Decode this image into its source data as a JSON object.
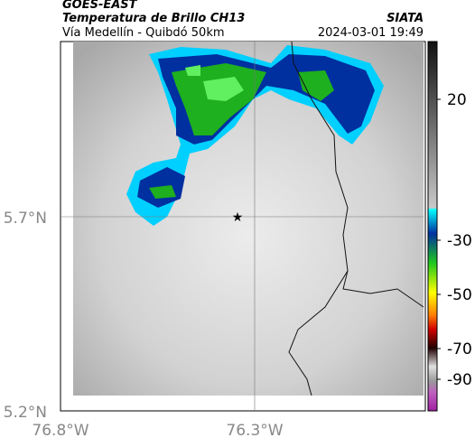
{
  "header": {
    "title": "GOES-EAST",
    "subtitle": "Temperatura de Brillo CH13",
    "source": "SIATA",
    "route": "Vía Medellín - Quibdó 50km",
    "timestamp": "2024-03-01 19:49"
  },
  "map": {
    "lat_labels": [
      "5.7°N",
      "5.2°N"
    ],
    "lon_labels": [
      "76.8°W",
      "76.3°W"
    ]
  },
  "colorbar": {
    "ticks": [
      20,
      -30,
      -50,
      -70,
      -90
    ]
  }
}
